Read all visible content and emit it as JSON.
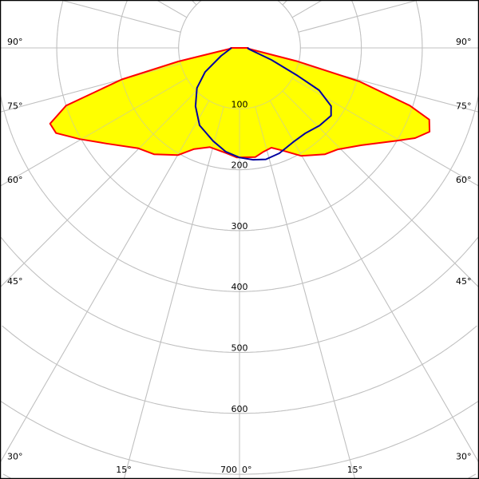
{
  "chart_data": {
    "type": "polar",
    "title": "",
    "radial_ticks": [
      "100",
      "200",
      "300",
      "400",
      "500",
      "600",
      "700"
    ],
    "radial_values": [
      100,
      200,
      300,
      400,
      500,
      600,
      700
    ],
    "angle_ticks_left": [
      {
        "angle": 90,
        "label": "90°"
      },
      {
        "angle": 75,
        "label": "75°"
      },
      {
        "angle": 60,
        "label": "60°"
      },
      {
        "angle": 45,
        "label": "45°"
      },
      {
        "angle": 30,
        "label": "30°"
      },
      {
        "angle": 15,
        "label": "15°"
      }
    ],
    "angle_ticks_right": [
      {
        "angle": 90,
        "label": "90°"
      },
      {
        "angle": 75,
        "label": "75°"
      },
      {
        "angle": 60,
        "label": "60°"
      },
      {
        "angle": 45,
        "label": "45°"
      },
      {
        "angle": 30,
        "label": "30°"
      },
      {
        "angle": 15,
        "label": "15°"
      }
    ],
    "angle_tick_zero": "0°",
    "grid": true,
    "grid_angle_step_deg": 15,
    "grid_color": "#c0c0c0",
    "series": [
      {
        "color": "#ff0000",
        "fill": "#ffff00",
        "points_angle_intensity": [
          [
            -90,
            14
          ],
          [
            -85,
            16
          ],
          [
            -77.5,
            103
          ],
          [
            -75,
            200
          ],
          [
            -71.6,
            300
          ],
          [
            -68.2,
            335
          ],
          [
            -65.1,
            332
          ],
          [
            -60.3,
            302
          ],
          [
            -54.3,
            269
          ],
          [
            -45.2,
            234
          ],
          [
            -38.8,
            224
          ],
          [
            -29.9,
            203
          ],
          [
            -24.2,
            182
          ],
          [
            -16.6,
            170
          ],
          [
            -7.3,
            174
          ],
          [
            -1.3,
            180
          ],
          [
            4.2,
            180
          ],
          [
            8.3,
            181
          ],
          [
            13,
            175
          ],
          [
            17.7,
            172
          ],
          [
            22.5,
            182
          ],
          [
            29.7,
            204
          ],
          [
            38.8,
            224
          ],
          [
            44.1,
            232
          ],
          [
            51.4,
            256
          ],
          [
            59.5,
            300
          ],
          [
            62.8,
            324
          ],
          [
            66.2,
            341
          ],
          [
            69.3,
            333
          ],
          [
            71.3,
            295
          ],
          [
            74.4,
            204
          ],
          [
            76.9,
            98
          ],
          [
            85,
            14
          ],
          [
            90,
            14
          ]
        ]
      },
      {
        "color": "#0000a0",
        "points_angle_intensity": [
          [
            -90,
            13
          ],
          [
            -66.5,
            33
          ],
          [
            -55,
            69
          ],
          [
            -46.7,
            96
          ],
          [
            -37,
            120
          ],
          [
            -27.3,
            143
          ],
          [
            -15.8,
            159
          ],
          [
            -7.5,
            172
          ],
          [
            0,
            180
          ],
          [
            6.9,
            185
          ],
          [
            13.3,
            188
          ],
          [
            20.7,
            185
          ],
          [
            29.6,
            178
          ],
          [
            37.8,
            177
          ],
          [
            45.9,
            183
          ],
          [
            53.5,
            187
          ],
          [
            57.6,
            178
          ],
          [
            62,
            148
          ],
          [
            64.4,
            106
          ],
          [
            69.4,
            56
          ],
          [
            81,
            17
          ],
          [
            90,
            13
          ]
        ]
      }
    ]
  }
}
